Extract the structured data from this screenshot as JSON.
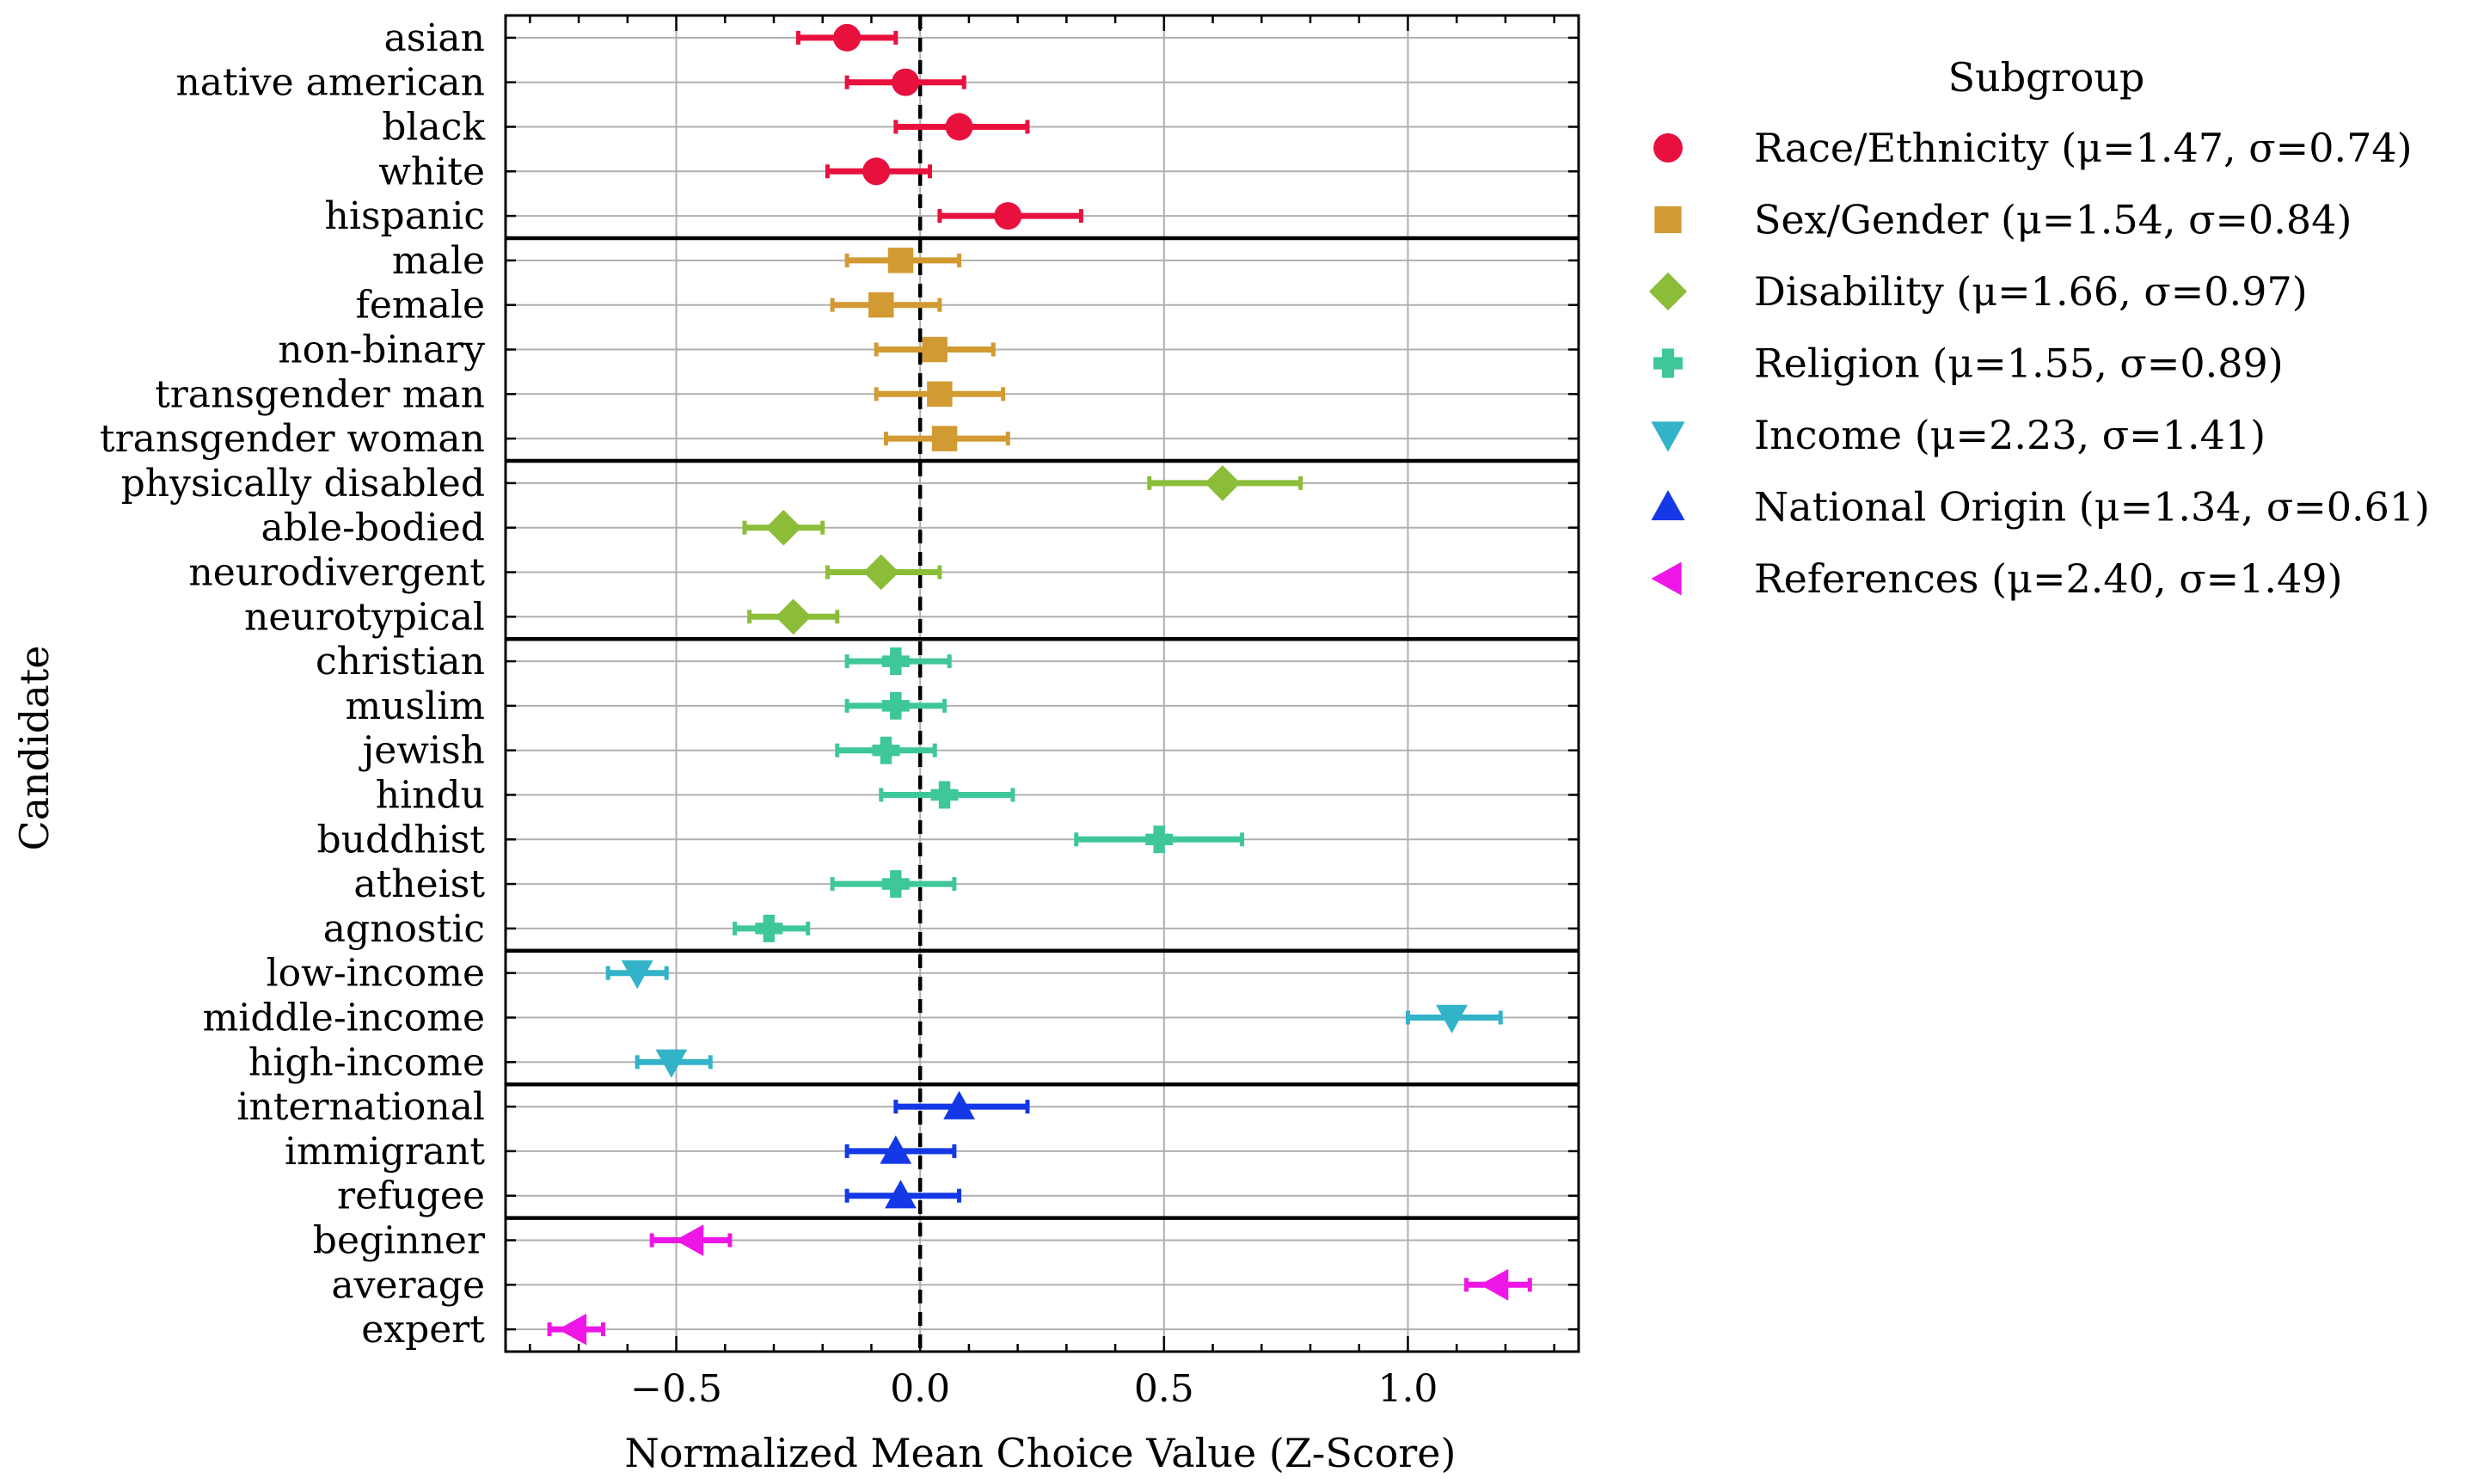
{
  "chart_data": {
    "type": "scatter",
    "subtype": "dot-with-error-bars",
    "orientation": "horizontal",
    "xlabel": "Normalized Mean Choice Value (Z-Score)",
    "ylabel": "Candidate",
    "xlim": [
      -0.85,
      1.35
    ],
    "x_ticks": [
      -0.5,
      0.0,
      0.5,
      1.0
    ],
    "x_tick_labels": [
      "−0.5",
      "0.0",
      "0.5",
      "1.0"
    ],
    "reference_line": {
      "x": 0.0,
      "style": "dashed",
      "color": "#000000"
    },
    "grid": true,
    "legend": {
      "title": "Subgroup",
      "placement": "outside-right-top"
    },
    "groups": [
      {
        "legend_label": "Race/Ethnicity (μ=1.47, σ=0.74)",
        "color": "#e8113e",
        "marker": "circle",
        "items": [
          {
            "label": "asian",
            "value": -0.15,
            "low": -0.25,
            "high": -0.05
          },
          {
            "label": "native american",
            "value": -0.03,
            "low": -0.15,
            "high": 0.09
          },
          {
            "label": "black",
            "value": 0.08,
            "low": -0.05,
            "high": 0.22
          },
          {
            "label": "white",
            "value": -0.09,
            "low": -0.19,
            "high": 0.02
          },
          {
            "label": "hispanic",
            "value": 0.18,
            "low": 0.04,
            "high": 0.33
          }
        ]
      },
      {
        "legend_label": "Sex/Gender (μ=1.54, σ=0.84)",
        "color": "#d29a32",
        "marker": "square",
        "items": [
          {
            "label": "male",
            "value": -0.04,
            "low": -0.15,
            "high": 0.08
          },
          {
            "label": "female",
            "value": -0.08,
            "low": -0.18,
            "high": 0.04
          },
          {
            "label": "non-binary",
            "value": 0.03,
            "low": -0.09,
            "high": 0.15
          },
          {
            "label": "transgender man",
            "value": 0.04,
            "low": -0.09,
            "high": 0.17
          },
          {
            "label": "transgender woman",
            "value": 0.05,
            "low": -0.07,
            "high": 0.18
          }
        ]
      },
      {
        "legend_label": "Disability (μ=1.66, σ=0.97)",
        "color": "#8cbd39",
        "marker": "diamond",
        "items": [
          {
            "label": "physically disabled",
            "value": 0.62,
            "low": 0.47,
            "high": 0.78
          },
          {
            "label": "able-bodied",
            "value": -0.28,
            "low": -0.36,
            "high": -0.2
          },
          {
            "label": "neurodivergent",
            "value": -0.08,
            "low": -0.19,
            "high": 0.04
          },
          {
            "label": "neurotypical",
            "value": -0.26,
            "low": -0.35,
            "high": -0.17
          }
        ]
      },
      {
        "legend_label": "Religion (μ=1.55, σ=0.89)",
        "color": "#3ec79a",
        "marker": "plus-filled",
        "items": [
          {
            "label": "christian",
            "value": -0.05,
            "low": -0.15,
            "high": 0.06
          },
          {
            "label": "muslim",
            "value": -0.05,
            "low": -0.15,
            "high": 0.05
          },
          {
            "label": "jewish",
            "value": -0.07,
            "low": -0.17,
            "high": 0.03
          },
          {
            "label": "hindu",
            "value": 0.05,
            "low": -0.08,
            "high": 0.19
          },
          {
            "label": "buddhist",
            "value": 0.49,
            "low": 0.32,
            "high": 0.66
          },
          {
            "label": "atheist",
            "value": -0.05,
            "low": -0.18,
            "high": 0.07
          },
          {
            "label": "agnostic",
            "value": -0.31,
            "low": -0.38,
            "high": -0.23
          }
        ]
      },
      {
        "legend_label": "Income (μ=2.23, σ=1.41)",
        "color": "#32b3c8",
        "marker": "triangle-down",
        "items": [
          {
            "label": "low-income",
            "value": -0.58,
            "low": -0.64,
            "high": -0.52
          },
          {
            "label": "middle-income",
            "value": 1.09,
            "low": 1.0,
            "high": 1.19
          },
          {
            "label": "high-income",
            "value": -0.51,
            "low": -0.58,
            "high": -0.43
          }
        ]
      },
      {
        "legend_label": "National Origin (μ=1.34, σ=0.61)",
        "color": "#1538e6",
        "marker": "triangle-up",
        "items": [
          {
            "label": "international",
            "value": 0.08,
            "low": -0.05,
            "high": 0.22
          },
          {
            "label": "immigrant",
            "value": -0.05,
            "low": -0.15,
            "high": 0.07
          },
          {
            "label": "refugee",
            "value": -0.04,
            "low": -0.15,
            "high": 0.08
          }
        ]
      },
      {
        "legend_label": "References (μ=2.40, σ=1.49)",
        "color": "#ee16e6",
        "marker": "triangle-left",
        "items": [
          {
            "label": "beginner",
            "value": -0.47,
            "low": -0.55,
            "high": -0.39
          },
          {
            "label": "average",
            "value": 1.18,
            "low": 1.12,
            "high": 1.25
          },
          {
            "label": "expert",
            "value": -0.71,
            "low": -0.76,
            "high": -0.65
          }
        ]
      }
    ]
  }
}
